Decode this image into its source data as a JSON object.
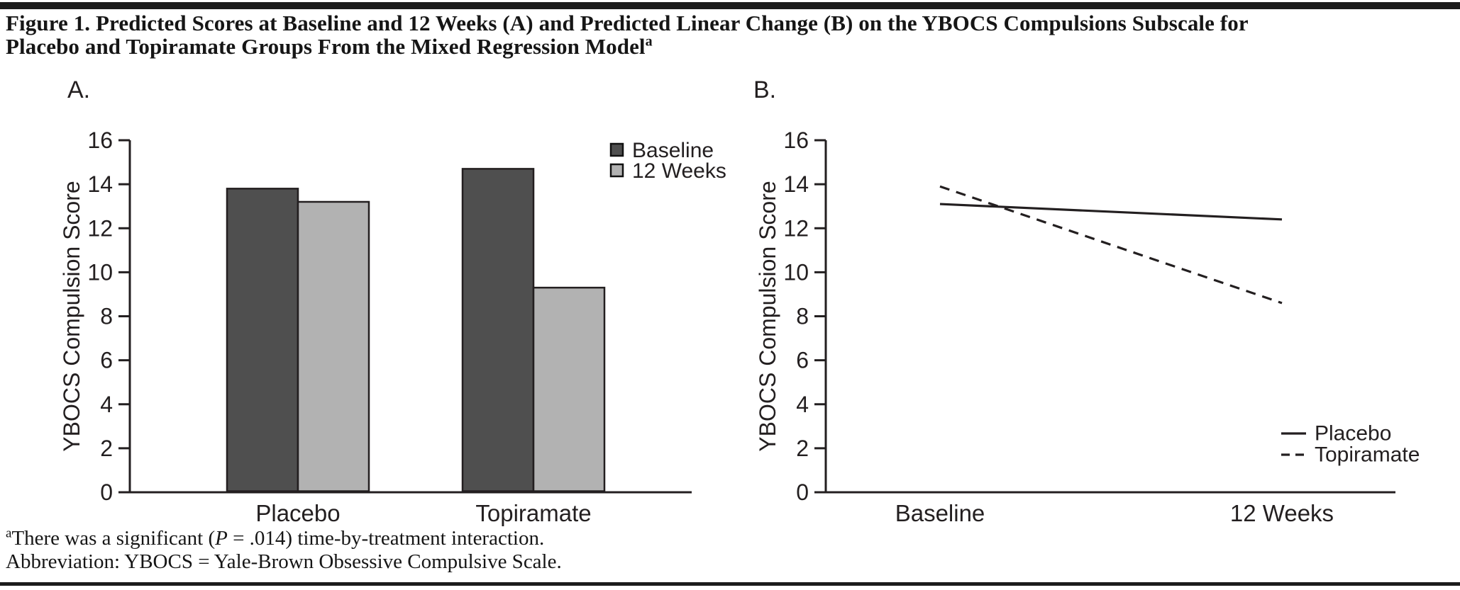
{
  "title": {
    "line1": "Figure 1. Predicted Scores at Baseline and 12 Weeks (A) and Predicted Linear Change (B) on the YBOCS Compulsions Subscale for",
    "line2": "Placebo and Topiramate Groups From the Mixed Regression Model",
    "line2_sup": "a"
  },
  "panels": {
    "a": "A.",
    "b": "B."
  },
  "chart_data": [
    {
      "type": "bar",
      "panel": "A",
      "categories": [
        "Placebo",
        "Topiramate"
      ],
      "series": [
        {
          "name": "Baseline",
          "values": [
            13.8,
            14.7
          ],
          "color": "#4f4f4f"
        },
        {
          "name": "12 Weeks",
          "values": [
            13.2,
            9.3
          ],
          "color": "#b2b2b2"
        }
      ],
      "ylabel": "YBOCS Compulsion Score",
      "ylim": [
        0,
        16
      ],
      "ytick_step": 2,
      "grid": false,
      "legend_position": "top-right"
    },
    {
      "type": "line",
      "panel": "B",
      "categories": [
        "Baseline",
        "12 Weeks"
      ],
      "series": [
        {
          "name": "Placebo",
          "values": [
            13.1,
            12.4
          ],
          "style": "solid",
          "color": "#231f20"
        },
        {
          "name": "Topiramate",
          "values": [
            13.9,
            8.6
          ],
          "style": "dashed",
          "color": "#231f20"
        }
      ],
      "ylabel": "YBOCS Compulsion Score",
      "ylim": [
        0,
        16
      ],
      "ytick_step": 2,
      "grid": false,
      "legend_position": "bottom-right"
    }
  ],
  "footnotes": {
    "note_sup": "a",
    "note_part1": "There was a significant (",
    "note_italic": "P",
    "note_part2": " = .014) time-by-treatment interaction.",
    "abbreviation": "Abbreviation: YBOCS = Yale-Brown Obsessive Compulsive Scale."
  },
  "colors": {
    "axis": "#231f20",
    "bar_dark": "#4f4f4f",
    "bar_light": "#b2b2b2",
    "rule": "#1c1c1c",
    "text": "#161616"
  }
}
